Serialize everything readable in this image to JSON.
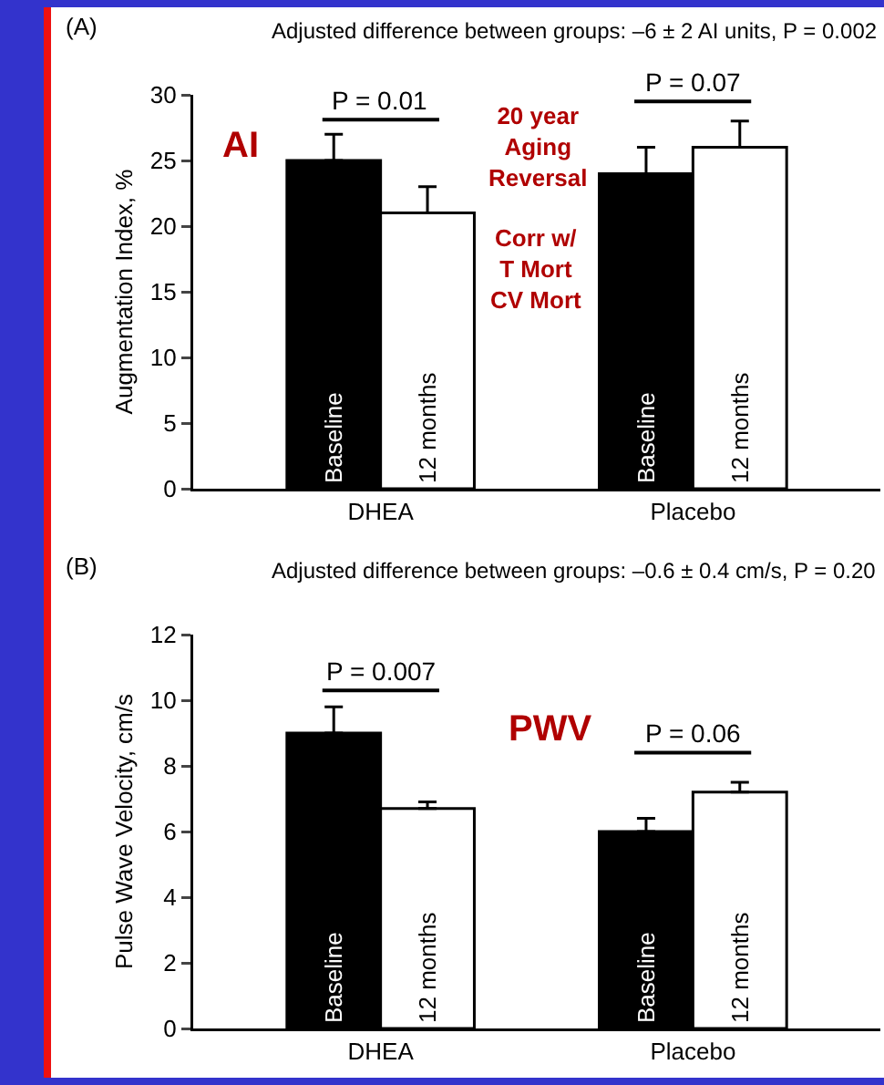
{
  "chart_data": [
    {
      "type": "bar",
      "title": "(A)",
      "subtitle": "Adjusted difference between groups: –6 ± 2 AI units, P = 0.002",
      "ylabel": "Augmentation Index, %",
      "categories": [
        "DHEA",
        "Placebo"
      ],
      "series": [
        {
          "name": "Baseline",
          "color": "#000000",
          "values": [
            25,
            24
          ],
          "errors": [
            [
              25,
              27
            ],
            [
              24,
              26
            ]
          ]
        },
        {
          "name": "12 months",
          "color": "#ffffff",
          "values": [
            21,
            26
          ],
          "errors": [
            [
              21,
              23
            ],
            [
              26,
              28
            ]
          ]
        }
      ],
      "ylim": [
        0,
        30
      ],
      "yticks": [
        0,
        5,
        10,
        15,
        20,
        25,
        30
      ],
      "grid": false,
      "legend": false,
      "annotations": [
        "P = 0.01",
        "P = 0.07",
        "AI",
        "20 year\nAging\nReversal",
        "Corr w/\nT Mort\nCV Mort"
      ]
    },
    {
      "type": "bar",
      "title": "(B)",
      "subtitle": "Adjusted difference between groups: –0.6 ± 0.4 cm/s, P = 0.20",
      "ylabel": "Pulse Wave Velocity, cm/s",
      "categories": [
        "DHEA",
        "Placebo"
      ],
      "series": [
        {
          "name": "Baseline",
          "color": "#000000",
          "values": [
            9.0,
            6.0
          ],
          "errors": [
            [
              9.0,
              9.8
            ],
            [
              6.0,
              6.4
            ]
          ]
        },
        {
          "name": "12 months",
          "color": "#ffffff",
          "values": [
            6.7,
            7.2
          ],
          "errors": [
            [
              6.7,
              6.9
            ],
            [
              7.2,
              7.5
            ]
          ]
        }
      ],
      "ylim": [
        0,
        12
      ],
      "yticks": [
        0,
        2,
        4,
        6,
        8,
        10,
        12
      ],
      "grid": false,
      "legend": false,
      "annotations": [
        "P = 0.007",
        "P = 0.06",
        "PWV"
      ]
    }
  ]
}
